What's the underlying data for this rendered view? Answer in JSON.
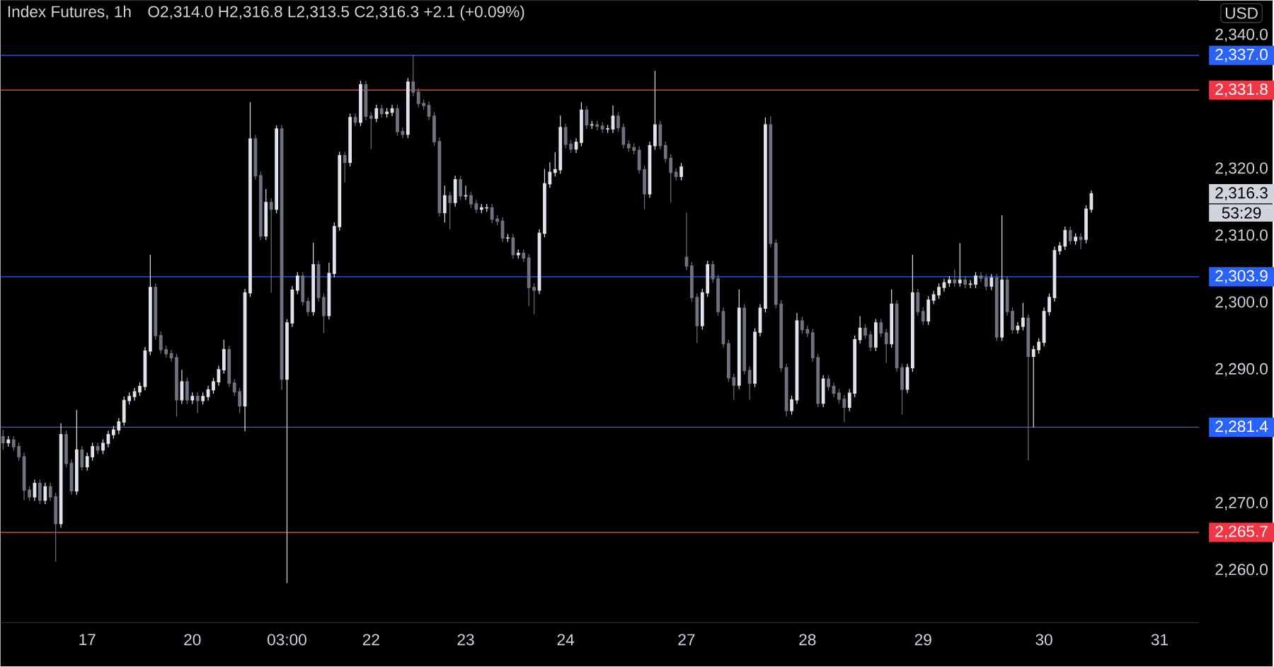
{
  "chart_data": {
    "type": "candlestick",
    "title": "Index Futures, 1h",
    "annotations": [
      "O2,314.0 H2,316.8 L2,313.5 C2,316.3 +2.1 (+0.09%)",
      "USD",
      "2,316.3",
      "53:29"
    ],
    "categories": [
      null,
      null,
      null,
      null,
      null,
      null,
      null,
      null,
      null,
      null,
      null,
      null,
      null,
      null,
      null,
      null,
      "17",
      null,
      null,
      null,
      null,
      null,
      null,
      null,
      null,
      null,
      null,
      null,
      null,
      null,
      null,
      null,
      null,
      null,
      null,
      null,
      "20",
      null,
      null,
      null,
      null,
      null,
      null,
      null,
      null,
      null,
      null,
      null,
      null,
      null,
      null,
      null,
      null,
      null,
      "03:00",
      null,
      null,
      null,
      null,
      null,
      null,
      null,
      null,
      null,
      null,
      null,
      null,
      null,
      null,
      null,
      "22",
      null,
      null,
      null,
      null,
      null,
      null,
      null,
      null,
      null,
      null,
      null,
      null,
      null,
      null,
      null,
      null,
      null,
      "23",
      null,
      null,
      null,
      null,
      null,
      null,
      null,
      null,
      null,
      null,
      null,
      null,
      null,
      null,
      null,
      null,
      null,
      null,
      "24",
      null,
      null,
      null,
      null,
      null,
      null,
      null,
      null,
      null,
      null,
      null,
      null,
      null,
      null,
      null,
      null,
      null,
      null,
      null,
      null,
      null,
      null,
      "27",
      null,
      null,
      null,
      null,
      null,
      null,
      null,
      null,
      null,
      null,
      null,
      null,
      null,
      null,
      null,
      null,
      null,
      null,
      null,
      null,
      null,
      null,
      "28",
      null,
      null,
      null,
      null,
      null,
      null,
      null,
      null,
      null,
      null,
      null,
      null,
      null,
      null,
      null,
      null,
      null,
      null,
      null,
      null,
      null,
      "29",
      null,
      null,
      null,
      null,
      null,
      null,
      null,
      null,
      null,
      null,
      null,
      null,
      null,
      null,
      null,
      null,
      null,
      null,
      null,
      null,
      null,
      null,
      "30",
      null,
      null,
      null,
      null,
      null,
      null,
      null,
      null,
      null,
      null,
      null,
      null,
      null,
      null,
      null,
      null,
      null,
      null,
      null,
      null,
      null,
      "31",
      null,
      null,
      null,
      null,
      null,
      null,
      null
    ],
    "ohlc": [
      [
        2280.0,
        2281.0,
        2278.0,
        2279.1
      ],
      [
        2279.1,
        2280.1,
        2278.5,
        2279.5
      ],
      [
        2279.5,
        2280.1,
        2277.9,
        2278.5
      ],
      [
        2278.5,
        2279.1,
        2276.4,
        2277.0
      ],
      [
        2277.0,
        2277.6,
        2270.5,
        2272.0
      ],
      [
        2272.0,
        2272.6,
        2270.4,
        2271.0
      ],
      [
        2271.0,
        2273.6,
        2270.4,
        2273.0
      ],
      [
        2273.0,
        2273.6,
        2269.9,
        2270.5
      ],
      [
        2270.5,
        2273.1,
        2269.9,
        2272.5
      ],
      [
        2272.5,
        2273.1,
        2270.4,
        2271.0
      ],
      [
        2271.0,
        2271.6,
        2261.3,
        2267.0
      ],
      [
        2267.0,
        2282.0,
        2266.4,
        2280.3
      ],
      [
        2280.3,
        2280.9,
        2275.4,
        2276.0
      ],
      [
        2276.0,
        2276.6,
        2271.3,
        2271.9
      ],
      [
        2271.9,
        2284.0,
        2271.3,
        2278.0
      ],
      [
        2278.0,
        2278.6,
        2274.9,
        2275.5
      ],
      [
        2275.5,
        2277.6,
        2274.9,
        2277.0
      ],
      [
        2277.0,
        2279.1,
        2276.4,
        2278.5
      ],
      [
        2278.5,
        2279.1,
        2277.4,
        2278.0
      ],
      [
        2278.0,
        2279.6,
        2277.4,
        2279.0
      ],
      [
        2279.0,
        2280.9,
        2278.4,
        2280.3
      ],
      [
        2280.3,
        2281.6,
        2279.7,
        2281.0
      ],
      [
        2281.0,
        2282.8,
        2280.4,
        2282.2
      ],
      [
        2282.2,
        2286.0,
        2281.6,
        2285.4
      ],
      [
        2285.4,
        2286.6,
        2284.8,
        2286.0
      ],
      [
        2286.0,
        2287.3,
        2285.4,
        2286.7
      ],
      [
        2286.7,
        2288.1,
        2286.1,
        2287.5
      ],
      [
        2287.5,
        2293.4,
        2286.9,
        2292.8
      ],
      [
        2292.8,
        2307.2,
        2292.2,
        2302.3
      ],
      [
        2302.3,
        2302.9,
        2294.5,
        2295.1
      ],
      [
        2295.1,
        2295.7,
        2292.4,
        2293.0
      ],
      [
        2293.0,
        2293.6,
        2291.8,
        2292.4
      ],
      [
        2292.4,
        2293.0,
        2291.2,
        2291.8
      ],
      [
        2291.8,
        2292.4,
        2283.0,
        2285.5
      ],
      [
        2285.5,
        2290.0,
        2284.9,
        2288.2
      ],
      [
        2288.2,
        2288.8,
        2284.9,
        2285.5
      ],
      [
        2285.5,
        2286.6,
        2284.9,
        2286.0
      ],
      [
        2286.0,
        2286.6,
        2283.5,
        2285.4
      ],
      [
        2285.4,
        2286.6,
        2284.8,
        2286.0
      ],
      [
        2286.0,
        2287.6,
        2285.4,
        2287.0
      ],
      [
        2287.0,
        2288.8,
        2286.4,
        2288.2
      ],
      [
        2288.2,
        2290.6,
        2287.6,
        2290.0
      ],
      [
        2290.0,
        2294.5,
        2289.4,
        2293.0
      ],
      [
        2293.0,
        2293.6,
        2287.4,
        2288.0
      ],
      [
        2288.0,
        2288.6,
        2286.1,
        2286.7
      ],
      [
        2286.7,
        2287.3,
        2283.5,
        2284.6
      ],
      [
        2284.6,
        2302.1,
        2280.8,
        2301.5
      ],
      [
        2301.5,
        2330.0,
        2300.9,
        2324.5
      ],
      [
        2324.5,
        2325.1,
        2318.4,
        2319.0
      ],
      [
        2319.0,
        2319.6,
        2309.4,
        2310.0
      ],
      [
        2310.0,
        2317.0,
        2309.4,
        2315.0
      ],
      [
        2315.0,
        2315.6,
        2301.5,
        2314.0
      ],
      [
        2314.0,
        2326.5,
        2313.4,
        2326.0
      ],
      [
        2326.0,
        2326.6,
        2287.0,
        2288.6
      ],
      [
        2288.6,
        2297.6,
        2258.1,
        2297.0
      ],
      [
        2297.0,
        2302.5,
        2296.4,
        2301.9
      ],
      [
        2301.9,
        2304.6,
        2301.3,
        2304.0
      ],
      [
        2304.0,
        2304.6,
        2299.6,
        2300.2
      ],
      [
        2300.2,
        2300.8,
        2298.1,
        2298.7
      ],
      [
        2298.7,
        2309.0,
        2298.1,
        2305.7
      ],
      [
        2305.7,
        2306.3,
        2300.2,
        2300.8
      ],
      [
        2300.8,
        2301.4,
        2295.5,
        2298.1
      ],
      [
        2298.1,
        2306.0,
        2297.5,
        2304.4
      ],
      [
        2304.4,
        2312.0,
        2303.8,
        2311.4
      ],
      [
        2311.4,
        2322.6,
        2310.8,
        2322.0
      ],
      [
        2322.0,
        2322.6,
        2318.0,
        2321.0
      ],
      [
        2321.0,
        2328.3,
        2320.4,
        2327.7
      ],
      [
        2327.7,
        2328.3,
        2326.4,
        2327.0
      ],
      [
        2327.0,
        2333.2,
        2326.4,
        2332.6
      ],
      [
        2332.6,
        2333.2,
        2327.3,
        2327.9
      ],
      [
        2327.9,
        2328.5,
        2323.0,
        2327.6
      ],
      [
        2327.6,
        2329.6,
        2327.0,
        2329.0
      ],
      [
        2329.0,
        2329.6,
        2327.7,
        2328.3
      ],
      [
        2328.3,
        2329.1,
        2327.7,
        2328.5
      ],
      [
        2328.5,
        2329.6,
        2327.9,
        2329.0
      ],
      [
        2329.0,
        2329.6,
        2325.0,
        2325.6
      ],
      [
        2325.6,
        2326.2,
        2324.6,
        2325.2
      ],
      [
        2325.2,
        2333.6,
        2324.6,
        2333.0
      ],
      [
        2333.0,
        2337.0,
        2330.9,
        2331.5
      ],
      [
        2331.5,
        2332.1,
        2329.2,
        2329.8
      ],
      [
        2329.8,
        2330.4,
        2328.9,
        2329.5
      ],
      [
        2329.5,
        2330.1,
        2327.3,
        2327.9
      ],
      [
        2327.9,
        2328.5,
        2323.5,
        2324.1
      ],
      [
        2324.1,
        2324.7,
        2312.9,
        2313.5
      ],
      [
        2313.5,
        2317.5,
        2312.0,
        2316.0
      ],
      [
        2316.0,
        2316.6,
        2311.0,
        2315.0
      ],
      [
        2315.0,
        2319.0,
        2314.4,
        2318.4
      ],
      [
        2318.4,
        2319.0,
        2315.4,
        2316.0
      ],
      [
        2316.0,
        2317.5,
        2315.4,
        2316.0
      ],
      [
        2316.0,
        2316.6,
        2314.2,
        2314.8
      ],
      [
        2314.8,
        2315.4,
        2313.4,
        2314.0
      ],
      [
        2314.0,
        2314.8,
        2313.4,
        2314.2
      ],
      [
        2314.2,
        2314.8,
        2313.6,
        2314.2
      ],
      [
        2314.2,
        2314.8,
        2311.9,
        2312.5
      ],
      [
        2312.5,
        2313.1,
        2311.6,
        2312.2
      ],
      [
        2312.2,
        2312.8,
        2309.1,
        2309.7
      ],
      [
        2309.7,
        2310.3,
        2309.1,
        2309.7
      ],
      [
        2309.7,
        2310.3,
        2306.6,
        2307.2
      ],
      [
        2307.2,
        2308.0,
        2306.6,
        2307.4
      ],
      [
        2307.4,
        2308.0,
        2306.1,
        2306.7
      ],
      [
        2306.7,
        2307.3,
        2299.5,
        2302.3
      ],
      [
        2302.3,
        2302.9,
        2298.3,
        2301.9
      ],
      [
        2301.9,
        2311.0,
        2301.3,
        2310.4
      ],
      [
        2310.4,
        2320.0,
        2309.8,
        2317.8
      ],
      [
        2317.8,
        2321.0,
        2317.2,
        2319.5
      ],
      [
        2319.5,
        2322.5,
        2318.9,
        2319.9
      ],
      [
        2319.9,
        2328.0,
        2319.3,
        2326.2
      ],
      [
        2326.2,
        2326.8,
        2323.1,
        2323.7
      ],
      [
        2323.7,
        2324.3,
        2322.4,
        2323.0
      ],
      [
        2323.0,
        2324.6,
        2322.4,
        2324.0
      ],
      [
        2324.0,
        2330.0,
        2323.4,
        2328.8
      ],
      [
        2328.8,
        2329.4,
        2326.0,
        2326.6
      ],
      [
        2326.6,
        2327.2,
        2326.0,
        2326.6
      ],
      [
        2326.6,
        2327.2,
        2325.8,
        2326.4
      ],
      [
        2326.4,
        2327.0,
        2325.4,
        2326.0
      ],
      [
        2326.0,
        2326.6,
        2325.4,
        2326.0
      ],
      [
        2326.0,
        2329.5,
        2325.4,
        2327.9
      ],
      [
        2327.9,
        2328.5,
        2325.6,
        2326.2
      ],
      [
        2326.2,
        2326.8,
        2323.1,
        2323.7
      ],
      [
        2323.7,
        2324.3,
        2322.6,
        2323.2
      ],
      [
        2323.2,
        2323.8,
        2322.2,
        2322.8
      ],
      [
        2322.8,
        2323.4,
        2319.3,
        2319.9
      ],
      [
        2319.9,
        2320.5,
        2314.0,
        2316.3
      ],
      [
        2316.3,
        2324.1,
        2315.7,
        2323.5
      ],
      [
        2323.5,
        2334.7,
        2322.9,
        2326.6
      ],
      [
        2326.6,
        2327.2,
        2322.9,
        2323.5
      ],
      [
        2323.5,
        2324.1,
        2321.0,
        2321.6
      ],
      [
        2321.6,
        2322.2,
        2315.0,
        2319.5
      ],
      [
        2319.5,
        2320.1,
        2318.3,
        2318.9
      ],
      [
        2318.9,
        2320.9,
        2318.3,
        2320.3
      ],
      [
        2306.8,
        2313.5,
        2304.9,
        2305.5
      ],
      [
        2305.5,
        2306.1,
        2300.2,
        2300.8
      ],
      [
        2300.8,
        2301.4,
        2294.0,
        2296.6
      ],
      [
        2296.6,
        2302.1,
        2296.0,
        2301.5
      ],
      [
        2301.5,
        2306.3,
        2300.9,
        2305.7
      ],
      [
        2305.7,
        2306.3,
        2303.0,
        2303.6
      ],
      [
        2303.6,
        2304.2,
        2298.1,
        2298.7
      ],
      [
        2298.7,
        2299.3,
        2293.3,
        2293.9
      ],
      [
        2293.9,
        2294.5,
        2288.2,
        2288.8
      ],
      [
        2288.8,
        2289.4,
        2285.5,
        2287.7
      ],
      [
        2287.7,
        2302.0,
        2287.1,
        2299.2
      ],
      [
        2299.2,
        2299.8,
        2289.3,
        2289.9
      ],
      [
        2289.9,
        2290.5,
        2285.5,
        2288.0
      ],
      [
        2288.0,
        2296.2,
        2287.4,
        2295.6
      ],
      [
        2295.6,
        2299.8,
        2295.0,
        2299.2
      ],
      [
        2299.2,
        2327.7,
        2298.6,
        2326.6
      ],
      [
        2326.6,
        2327.9,
        2308.3,
        2308.9
      ],
      [
        2308.9,
        2309.5,
        2299.2,
        2299.8
      ],
      [
        2299.8,
        2300.4,
        2289.7,
        2290.3
      ],
      [
        2290.3,
        2290.9,
        2283.0,
        2283.9
      ],
      [
        2283.9,
        2286.1,
        2283.3,
        2285.5
      ],
      [
        2285.5,
        2298.5,
        2284.9,
        2297.3
      ],
      [
        2297.3,
        2297.9,
        2295.4,
        2296.0
      ],
      [
        2296.0,
        2296.6,
        2294.9,
        2295.5
      ],
      [
        2295.5,
        2296.1,
        2291.2,
        2291.8
      ],
      [
        2291.8,
        2292.4,
        2284.4,
        2285.0
      ],
      [
        2285.0,
        2289.2,
        2284.4,
        2288.6
      ],
      [
        2288.6,
        2289.2,
        2286.9,
        2287.5
      ],
      [
        2287.5,
        2288.1,
        2285.9,
        2286.5
      ],
      [
        2286.5,
        2287.1,
        2285.0,
        2285.6
      ],
      [
        2285.6,
        2286.2,
        2282.2,
        2284.4
      ],
      [
        2284.4,
        2287.1,
        2283.8,
        2286.5
      ],
      [
        2286.5,
        2295.1,
        2285.9,
        2294.5
      ],
      [
        2294.5,
        2298.0,
        2293.9,
        2296.2
      ],
      [
        2296.2,
        2296.8,
        2294.6,
        2295.2
      ],
      [
        2295.2,
        2295.8,
        2292.8,
        2293.4
      ],
      [
        2293.4,
        2297.6,
        2292.8,
        2297.0
      ],
      [
        2297.0,
        2297.6,
        2294.9,
        2295.5
      ],
      [
        2295.5,
        2296.1,
        2291.0,
        2293.9
      ],
      [
        2293.9,
        2302.0,
        2293.3,
        2299.8
      ],
      [
        2299.8,
        2300.4,
        2289.7,
        2290.3
      ],
      [
        2290.3,
        2290.9,
        2283.3,
        2287.1
      ],
      [
        2287.1,
        2290.9,
        2286.5,
        2290.3
      ],
      [
        2290.3,
        2307.2,
        2289.7,
        2301.5
      ],
      [
        2301.5,
        2302.1,
        2298.1,
        2298.7
      ],
      [
        2298.7,
        2299.3,
        2296.7,
        2297.3
      ],
      [
        2297.3,
        2301.0,
        2296.7,
        2300.4
      ],
      [
        2300.4,
        2301.8,
        2299.8,
        2301.2
      ],
      [
        2301.2,
        2302.9,
        2300.6,
        2302.3
      ],
      [
        2302.3,
        2303.6,
        2301.7,
        2303.0
      ],
      [
        2303.0,
        2304.0,
        2302.4,
        2303.4
      ],
      [
        2303.4,
        2305.0,
        2302.4,
        2303.0
      ],
      [
        2303.0,
        2308.9,
        2302.4,
        2303.4
      ],
      [
        2303.4,
        2304.0,
        2302.2,
        2302.8
      ],
      [
        2302.8,
        2303.4,
        2302.2,
        2302.8
      ],
      [
        2302.8,
        2304.6,
        2302.2,
        2304.0
      ],
      [
        2304.0,
        2304.6,
        2303.1,
        2303.7
      ],
      [
        2303.7,
        2304.3,
        2301.9,
        2302.5
      ],
      [
        2302.5,
        2304.3,
        2301.9,
        2303.7
      ],
      [
        2303.7,
        2304.3,
        2294.3,
        2294.9
      ],
      [
        2294.9,
        2313.1,
        2294.3,
        2303.4
      ],
      [
        2303.4,
        2304.0,
        2298.1,
        2298.7
      ],
      [
        2298.7,
        2299.3,
        2295.4,
        2296.0
      ],
      [
        2296.0,
        2297.1,
        2295.4,
        2296.5
      ],
      [
        2296.5,
        2300.0,
        2295.9,
        2297.7
      ],
      [
        2297.7,
        2298.3,
        2276.5,
        2292.0
      ],
      [
        2292.0,
        2293.6,
        2281.4,
        2293.0
      ],
      [
        2293.0,
        2294.7,
        2292.4,
        2294.1
      ],
      [
        2294.1,
        2299.3,
        2293.5,
        2298.7
      ],
      [
        2298.7,
        2301.4,
        2298.1,
        2300.8
      ],
      [
        2300.8,
        2308.4,
        2300.2,
        2307.8
      ],
      [
        2307.8,
        2309.1,
        2307.2,
        2308.5
      ],
      [
        2308.5,
        2311.4,
        2307.9,
        2310.8
      ],
      [
        2310.8,
        2311.4,
        2308.7,
        2309.3
      ],
      [
        2309.3,
        2310.4,
        2308.7,
        2309.8
      ],
      [
        2309.8,
        2310.4,
        2308.0,
        2309.5
      ],
      [
        2309.5,
        2314.6,
        2308.9,
        2314.0
      ],
      [
        2314.0,
        2316.8,
        2313.5,
        2316.3
      ],
      null,
      null,
      null,
      null,
      null,
      null,
      null,
      null,
      null,
      null,
      null,
      null,
      null,
      null,
      null,
      null,
      null,
      null,
      null,
      null
    ],
    "ylim": [
      2252.2,
      2345.2
    ],
    "yticks": [
      {
        "value": 2260,
        "label": "2,260.0"
      },
      {
        "value": 2270,
        "label": "2,270.0"
      },
      {
        "value": 2290,
        "label": "2,290.0"
      },
      {
        "value": 2300,
        "label": "2,300.0"
      },
      {
        "value": 2310,
        "label": "2,310.0"
      },
      {
        "value": 2320,
        "label": "2,320.0"
      },
      {
        "value": 2340,
        "label": "2,340.0"
      }
    ],
    "ref_lines": [
      {
        "axis": "y",
        "value": 2337.0,
        "label": "2,337.0",
        "color": "#2962ff"
      },
      {
        "axis": "y",
        "value": 2331.8,
        "label": "2,331.8",
        "color": "#f23645"
      },
      {
        "axis": "y",
        "value": 2303.9,
        "label": "2,303.9",
        "color": "#2962ff"
      },
      {
        "axis": "y",
        "value": 2281.4,
        "label": "2,281.4",
        "color": "#2962ff"
      },
      {
        "axis": "y",
        "value": 2265.7,
        "label": "2,265.7",
        "color": "#f23645"
      }
    ]
  }
}
